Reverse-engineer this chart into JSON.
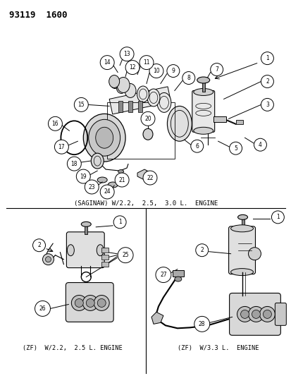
{
  "bg_color": "#ffffff",
  "title": "93119  1600",
  "saginaw_label": "(SAGINAW) W/2.2,  2.5,  3.0 L.  ENGINE",
  "zf_22_label": "(ZF)  W/2.2,  2.5 L. ENGINE",
  "zf_33_label": "(ZF)  W/3.3 L.  ENGINE",
  "figsize": [
    4.14,
    5.33
  ],
  "dpi": 100
}
